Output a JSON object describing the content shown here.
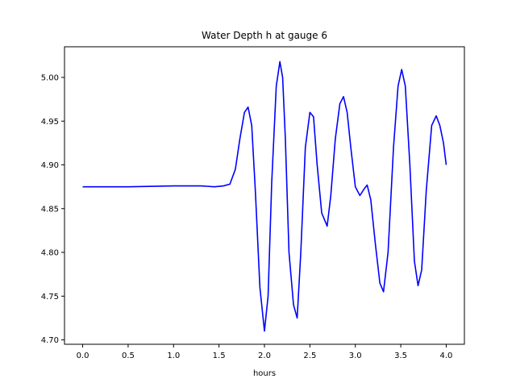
{
  "chart_data": {
    "type": "line",
    "title": "Water Depth h at gauge 6",
    "xlabel": "hours",
    "ylabel": "",
    "xlim": [
      -0.2,
      4.2
    ],
    "ylim": [
      4.695,
      5.035
    ],
    "xticks": [
      0.0,
      0.5,
      1.0,
      1.5,
      2.0,
      2.5,
      3.0,
      3.5,
      4.0
    ],
    "xtick_labels": [
      "0.0",
      "0.5",
      "1.0",
      "1.5",
      "2.0",
      "2.5",
      "3.0",
      "3.5",
      "4.0"
    ],
    "yticks": [
      4.7,
      4.75,
      4.8,
      4.85,
      4.9,
      4.95,
      5.0
    ],
    "ytick_labels": [
      "4.70",
      "4.75",
      "4.80",
      "4.85",
      "4.90",
      "4.95",
      "5.00"
    ],
    "grid": false,
    "legend": "none",
    "series": [
      {
        "color": "#0000ff",
        "x": [
          0.0,
          0.5,
          1.0,
          1.3,
          1.45,
          1.55,
          1.62,
          1.68,
          1.73,
          1.78,
          1.82,
          1.86,
          1.9,
          1.95,
          2.0,
          2.04,
          2.08,
          2.13,
          2.17,
          2.2,
          2.23,
          2.27,
          2.32,
          2.36,
          2.4,
          2.45,
          2.5,
          2.54,
          2.58,
          2.63,
          2.69,
          2.73,
          2.78,
          2.83,
          2.87,
          2.91,
          2.95,
          3.0,
          3.05,
          3.1,
          3.13,
          3.17,
          3.22,
          3.27,
          3.31,
          3.36,
          3.42,
          3.47,
          3.51,
          3.55,
          3.6,
          3.65,
          3.69,
          3.73,
          3.78,
          3.84,
          3.89,
          3.93,
          3.97,
          4.0
        ],
        "y": [
          4.875,
          4.875,
          4.876,
          4.876,
          4.875,
          4.876,
          4.878,
          4.895,
          4.93,
          4.96,
          4.966,
          4.945,
          4.87,
          4.76,
          4.71,
          4.75,
          4.88,
          4.99,
          5.018,
          5.0,
          4.93,
          4.8,
          4.74,
          4.725,
          4.8,
          4.92,
          4.96,
          4.955,
          4.9,
          4.845,
          4.83,
          4.865,
          4.93,
          4.97,
          4.978,
          4.96,
          4.92,
          4.875,
          4.865,
          4.873,
          4.877,
          4.86,
          4.81,
          4.765,
          4.755,
          4.8,
          4.92,
          4.99,
          5.009,
          4.99,
          4.9,
          4.79,
          4.762,
          4.78,
          4.87,
          4.945,
          4.956,
          4.945,
          4.925,
          4.9
        ]
      }
    ]
  }
}
